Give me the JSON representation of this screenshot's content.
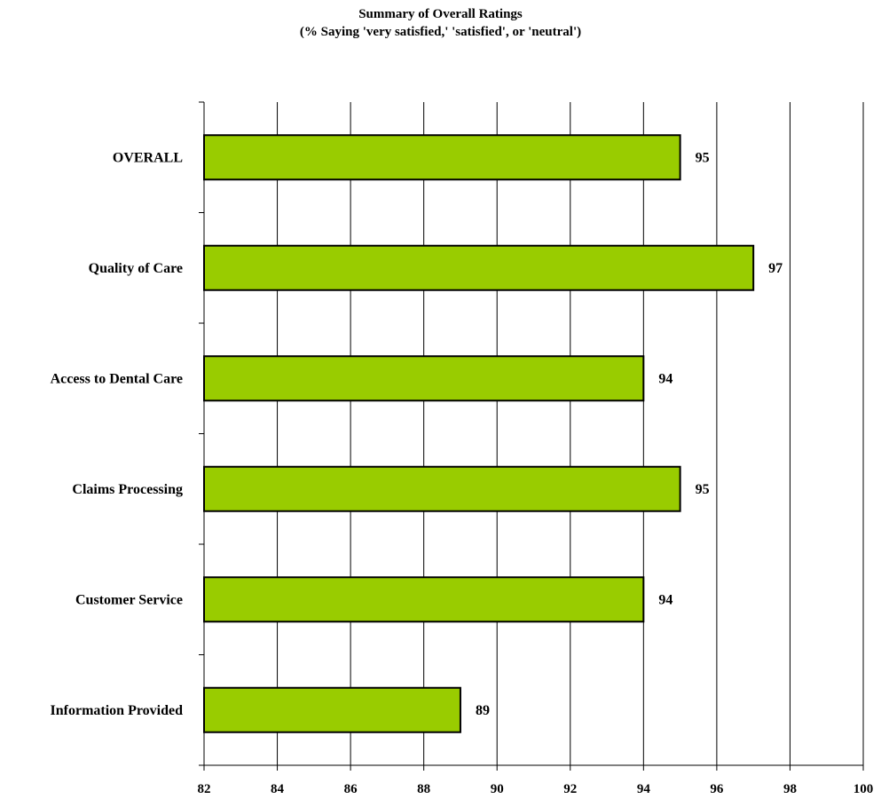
{
  "chart_data": {
    "type": "bar",
    "orientation": "horizontal",
    "title": "Summary of Overall Ratings",
    "subtitle": "(% Saying 'very satisfied,' 'satisfied', or 'neutral')",
    "xlabel": "",
    "ylabel": "",
    "categories": [
      "OVERALL",
      "Quality of Care",
      "Access to Dental Care",
      "Claims Processing",
      "Customer Service",
      "Information Provided"
    ],
    "values": [
      95,
      97,
      94,
      95,
      94,
      89
    ],
    "xlim": [
      82,
      100
    ],
    "xticks": [
      "82",
      "84",
      "86",
      "88",
      "90",
      "92",
      "94",
      "96",
      "98",
      "100"
    ],
    "data_labels": [
      "95",
      "97",
      "94",
      "95",
      "94",
      "89"
    ],
    "grid": "vertical",
    "legend": "none",
    "bar_color": "#99CC00",
    "bar_border_color": "#000000"
  }
}
